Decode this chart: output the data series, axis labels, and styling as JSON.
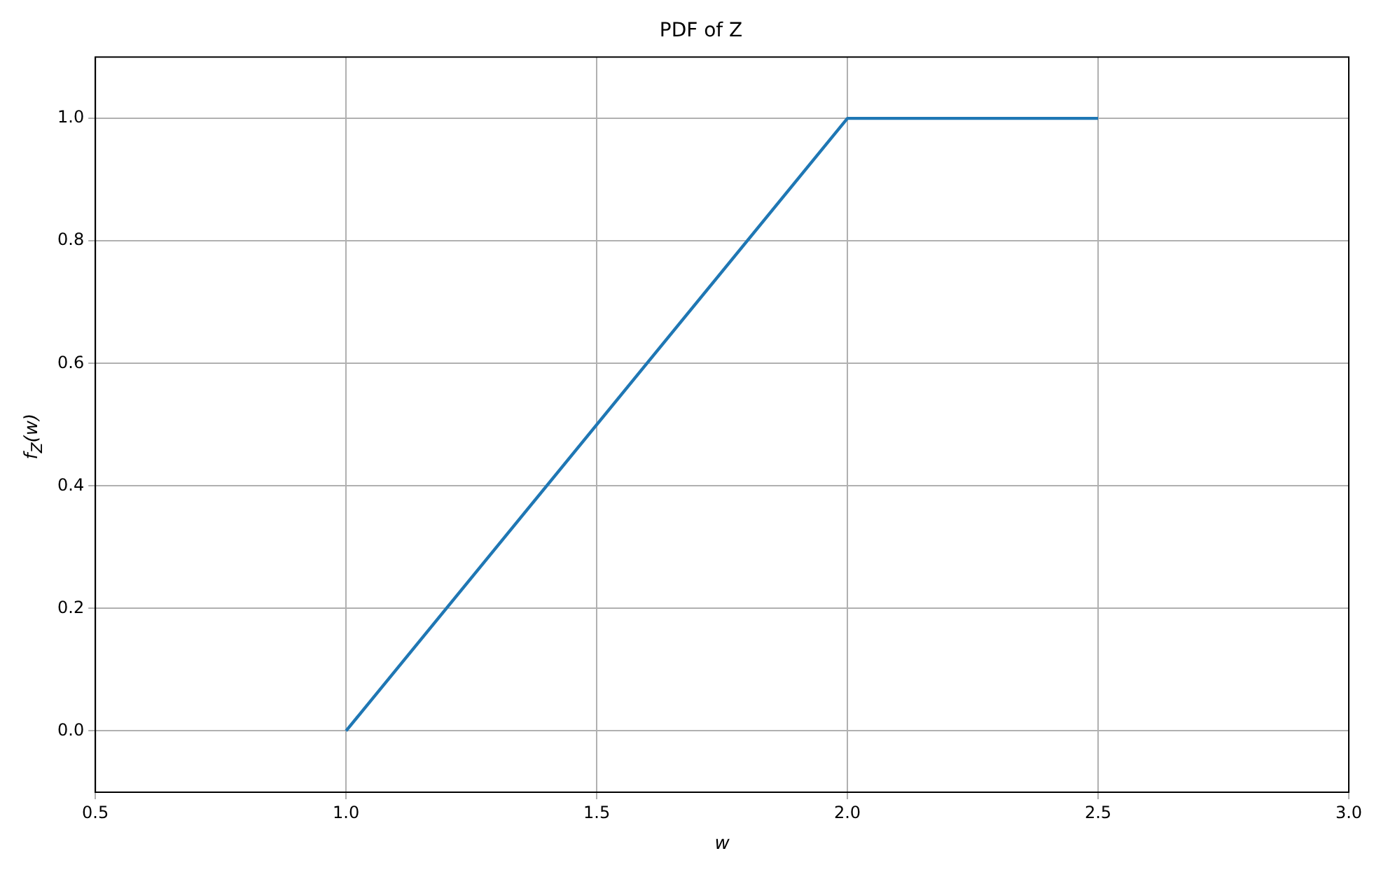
{
  "chart_data": {
    "type": "line",
    "title": "PDF of Z",
    "xlabel": "w",
    "ylabel": "f$_{Z}$(w)",
    "series": [
      {
        "color": "#1f77b4",
        "x": [
          1,
          2,
          2.5
        ],
        "values": [
          0,
          1,
          1
        ]
      }
    ],
    "xlim": [
      0.5,
      3
    ],
    "ylim": [
      -0.1,
      1.1
    ],
    "xticks": [
      {
        "value": 0.5,
        "label": "0.5"
      },
      {
        "value": 1,
        "label": "1.0"
      },
      {
        "value": 1.5,
        "label": "1.5"
      },
      {
        "value": 2,
        "label": "2.0"
      },
      {
        "value": 2.5,
        "label": "2.5"
      },
      {
        "value": 3,
        "label": "3.0"
      }
    ],
    "yticks": [
      {
        "value": 0,
        "label": "0.0"
      },
      {
        "value": 0.2,
        "label": "0.2"
      },
      {
        "value": 0.4,
        "label": "0.4"
      },
      {
        "value": 0.6,
        "label": "0.6"
      },
      {
        "value": 0.8,
        "label": "0.8"
      },
      {
        "value": 1,
        "label": "1.0"
      }
    ],
    "grid": true,
    "legend": false,
    "marker": "none",
    "line_style": "solid"
  }
}
